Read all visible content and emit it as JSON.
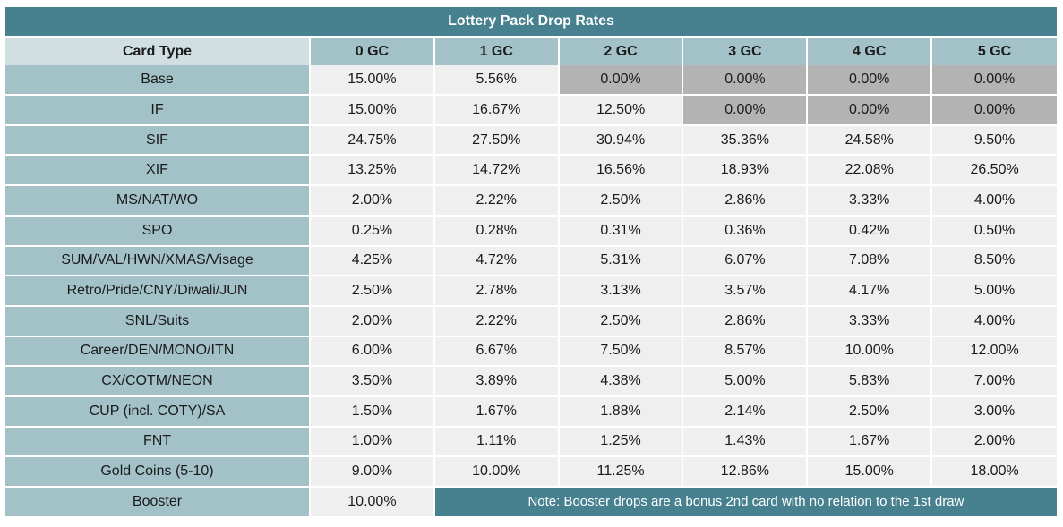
{
  "page_title": "Lottery Pack Drop Rates",
  "colors": {
    "title_bar_teal": "#47818F",
    "header_light": "#D2DFE2",
    "teal_light": "#A3C2C8",
    "data_cell_bg": "#EFEFEF",
    "zero_highlight_gray": "#B3B3B3",
    "text_dark": "#1A1A1A",
    "text_light": "#FFFFFF"
  },
  "chart_data": {
    "type": "table",
    "title": "Lottery Pack Drop Rates",
    "columns": [
      "Card Type",
      "0 GC",
      "1 GC",
      "2 GC",
      "3 GC",
      "4 GC",
      "5 GC"
    ],
    "rows": [
      {
        "label": "Base",
        "values": [
          "15.00%",
          "5.56%",
          "0.00%",
          "0.00%",
          "0.00%",
          "0.00%"
        ]
      },
      {
        "label": "IF",
        "values": [
          "15.00%",
          "16.67%",
          "12.50%",
          "0.00%",
          "0.00%",
          "0.00%"
        ]
      },
      {
        "label": "SIF",
        "values": [
          "24.75%",
          "27.50%",
          "30.94%",
          "35.36%",
          "24.58%",
          "9.50%"
        ]
      },
      {
        "label": "XIF",
        "values": [
          "13.25%",
          "14.72%",
          "16.56%",
          "18.93%",
          "22.08%",
          "26.50%"
        ]
      },
      {
        "label": "MS/NAT/WO",
        "values": [
          "2.00%",
          "2.22%",
          "2.50%",
          "2.86%",
          "3.33%",
          "4.00%"
        ]
      },
      {
        "label": "SPO",
        "values": [
          "0.25%",
          "0.28%",
          "0.31%",
          "0.36%",
          "0.42%",
          "0.50%"
        ]
      },
      {
        "label": "SUM/VAL/HWN/XMAS/Visage",
        "values": [
          "4.25%",
          "4.72%",
          "5.31%",
          "6.07%",
          "7.08%",
          "8.50%"
        ]
      },
      {
        "label": "Retro/Pride/CNY/Diwali/JUN",
        "values": [
          "2.50%",
          "2.78%",
          "3.13%",
          "3.57%",
          "4.17%",
          "5.00%"
        ]
      },
      {
        "label": "SNL/Suits",
        "values": [
          "2.00%",
          "2.22%",
          "2.50%",
          "2.86%",
          "3.33%",
          "4.00%"
        ]
      },
      {
        "label": "Career/DEN/MONO/ITN",
        "values": [
          "6.00%",
          "6.67%",
          "7.50%",
          "8.57%",
          "10.00%",
          "12.00%"
        ]
      },
      {
        "label": "CX/COTM/NEON",
        "values": [
          "3.50%",
          "3.89%",
          "4.38%",
          "5.00%",
          "5.83%",
          "7.00%"
        ]
      },
      {
        "label": "CUP (incl. COTY)/SA",
        "values": [
          "1.50%",
          "1.67%",
          "1.88%",
          "2.14%",
          "2.50%",
          "3.00%"
        ]
      },
      {
        "label": "FNT",
        "values": [
          "1.00%",
          "1.11%",
          "1.25%",
          "1.43%",
          "1.67%",
          "2.00%"
        ]
      },
      {
        "label": "Gold Coins (5-10)",
        "values": [
          "9.00%",
          "10.00%",
          "11.25%",
          "12.86%",
          "15.00%",
          "18.00%"
        ]
      },
      {
        "label": "Booster",
        "values": [
          "10.00%"
        ],
        "note_colspan": 5
      }
    ],
    "note": "Note: Booster drops are a bonus 2nd card with no relation to the 1st draw",
    "highlight_rule": "cells with value 0.00% are shaded gray",
    "legend_position": "none",
    "grid": "white gridlines"
  }
}
